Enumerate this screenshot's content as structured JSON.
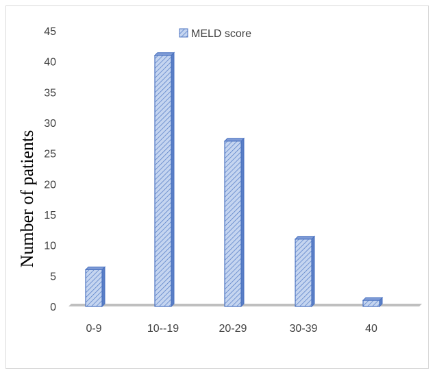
{
  "chart_data": {
    "type": "bar",
    "categories": [
      "0-9",
      "10--19",
      "20-29",
      "30-39",
      "40"
    ],
    "series": [
      {
        "name": "MELD score",
        "values": [
          6,
          41,
          27,
          11,
          1
        ]
      }
    ],
    "title": "",
    "xlabel": "",
    "ylabel": "Number of patients",
    "ylim": [
      0,
      45
    ],
    "yticks": [
      0,
      5,
      10,
      15,
      20,
      25,
      30,
      35,
      40,
      45
    ],
    "grid": false,
    "legend_position": "top",
    "colors": {
      "bar_fill": "#c5d5f0",
      "bar_hatch": "#4f78c4",
      "bar_edge": "#4a72c0",
      "floor": "#bfbfbf"
    }
  }
}
